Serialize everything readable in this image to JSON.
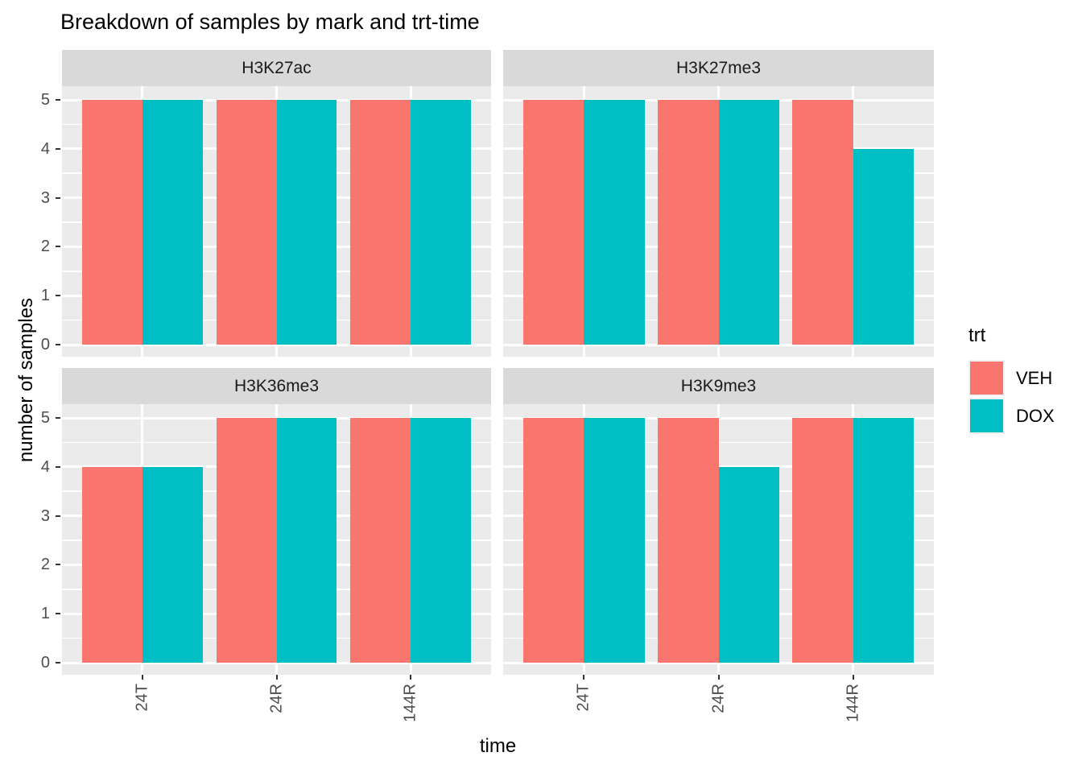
{
  "title": "Breakdown of samples by mark and trt-time",
  "chart_data": {
    "type": "bar",
    "title": "Breakdown of samples by mark and trt-time",
    "xlabel": "time",
    "ylabel": "number of samples",
    "categories": [
      "24T",
      "24R",
      "144R"
    ],
    "y_ticks": [
      0,
      1,
      2,
      3,
      4,
      5
    ],
    "ylim": [
      0,
      5
    ],
    "grid": true,
    "legend": {
      "title": "trt",
      "position": "right",
      "entries": [
        {
          "name": "VEH",
          "color": "#F8766D"
        },
        {
          "name": "DOX",
          "color": "#00BFC4"
        }
      ]
    },
    "facets": [
      {
        "label": "H3K27ac",
        "series": [
          {
            "name": "VEH",
            "values": [
              5,
              5,
              5
            ]
          },
          {
            "name": "DOX",
            "values": [
              5,
              5,
              5
            ]
          }
        ]
      },
      {
        "label": "H3K27me3",
        "series": [
          {
            "name": "VEH",
            "values": [
              5,
              5,
              5
            ]
          },
          {
            "name": "DOX",
            "values": [
              5,
              5,
              4
            ]
          }
        ]
      },
      {
        "label": "H3K36me3",
        "series": [
          {
            "name": "VEH",
            "values": [
              4,
              5,
              5
            ]
          },
          {
            "name": "DOX",
            "values": [
              4,
              5,
              5
            ]
          }
        ]
      },
      {
        "label": "H3K9me3",
        "series": [
          {
            "name": "VEH",
            "values": [
              5,
              5,
              5
            ]
          },
          {
            "name": "DOX",
            "values": [
              5,
              4,
              5
            ]
          }
        ]
      }
    ],
    "colors": {
      "panel_background": "#EBEBEB",
      "strip_background": "#D9D9D9",
      "gridline": "#FFFFFF",
      "axis_text": "#4D4D4D",
      "tick_mark": "#333333",
      "title_text": "#000000"
    }
  }
}
